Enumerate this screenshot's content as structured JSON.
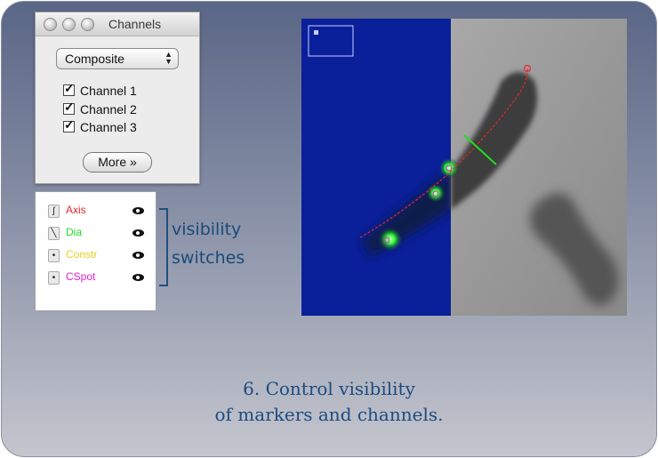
{
  "channels_window": {
    "title": "Channels",
    "mode_select": "Composite",
    "channels": [
      {
        "label": "Channel 1",
        "checked": true
      },
      {
        "label": "Channel 2",
        "checked": true
      },
      {
        "label": "Channel 3",
        "checked": true
      }
    ],
    "more_button": "More »"
  },
  "markers": [
    {
      "label": "Axis",
      "color": "#e8262b",
      "icon": "curve-icon"
    },
    {
      "label": "Dia",
      "color": "#22dd22",
      "icon": "line-icon"
    },
    {
      "label": "Constr",
      "color": "#e6cf1f",
      "icon": "dot-icon"
    },
    {
      "label": "CSpot",
      "color": "#e020d8",
      "icon": "dot-icon"
    }
  ],
  "annotation": {
    "line1": "visibility",
    "line2": "switches"
  },
  "caption": {
    "line1": "6. Control visibility",
    "line2": "of markers and channels."
  }
}
